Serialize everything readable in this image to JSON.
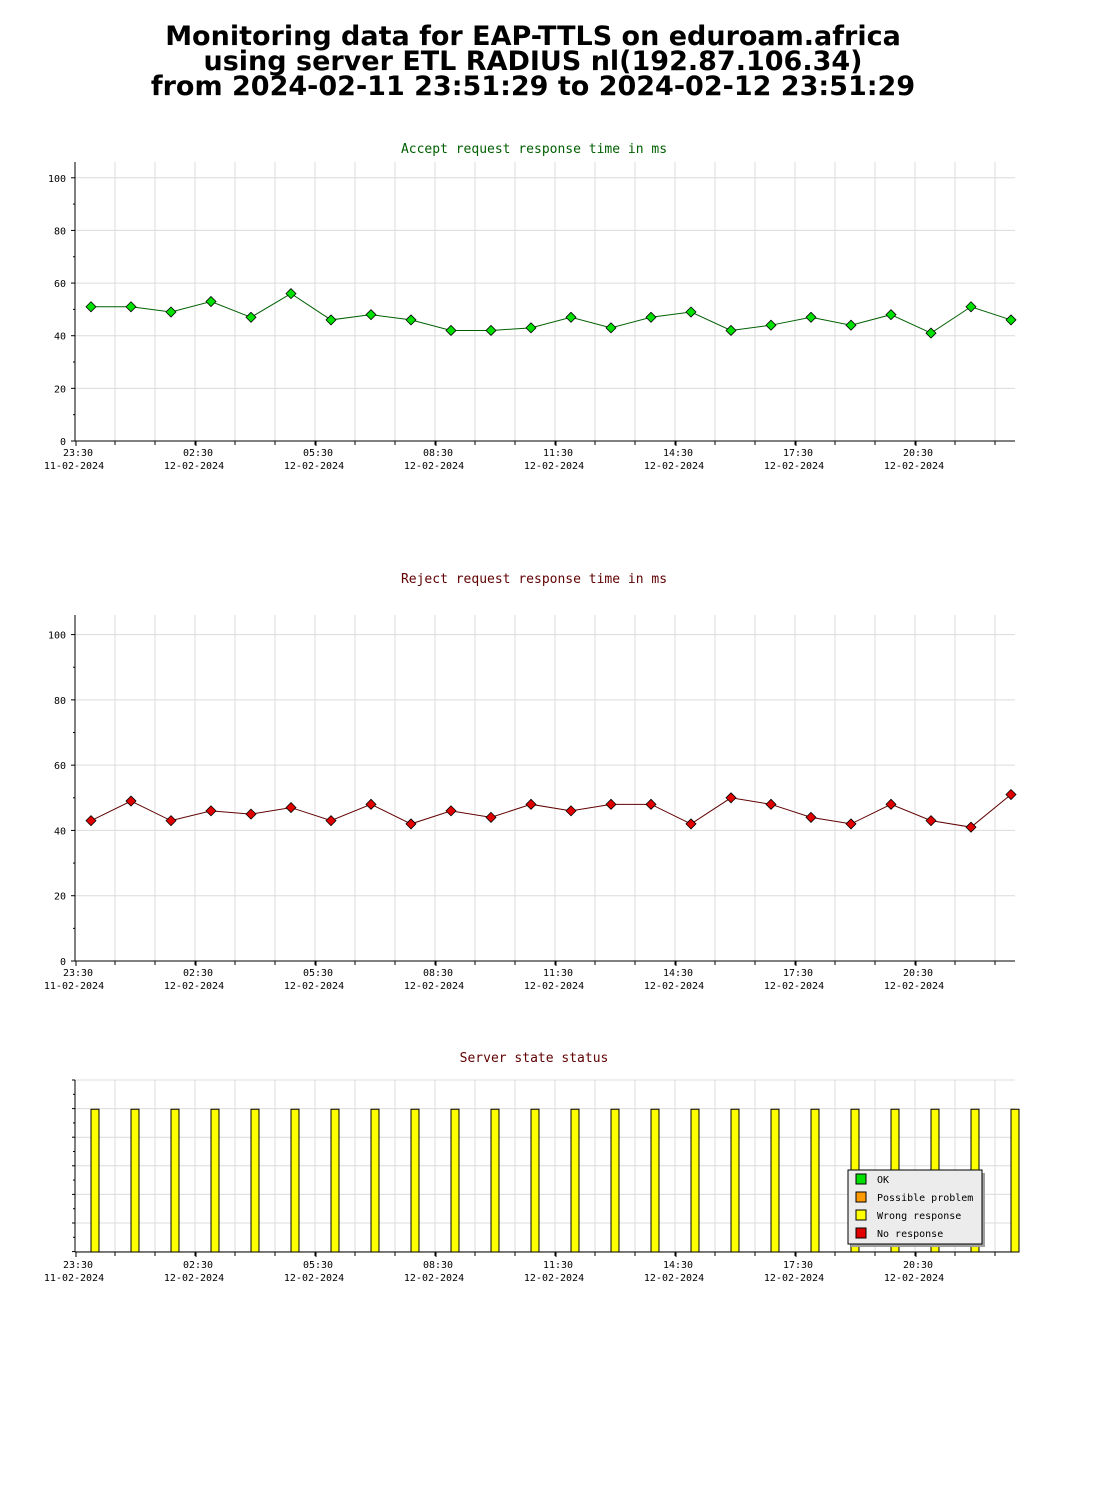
{
  "header": {
    "line1": "Monitoring data for EAP-TTLS on eduroam.africa",
    "line2": "using server ETL RADIUS nl(192.87.106.34)",
    "line3": "from 2024-02-11 23:51:29 to 2024-02-12 23:51:29"
  },
  "chart_data": [
    {
      "type": "line",
      "title": "Accept request response time in ms",
      "title_color": "#006000",
      "marker_color": "#00e000",
      "line_color": "#006000",
      "ylim": [
        0,
        106
      ],
      "yticks": [
        "0",
        "20",
        "40",
        "60",
        "80",
        "100"
      ],
      "xticks": [
        {
          "time": "23:30",
          "date": "11-02-2024"
        },
        {
          "time": "02:30",
          "date": "12-02-2024"
        },
        {
          "time": "05:30",
          "date": "12-02-2024"
        },
        {
          "time": "08:30",
          "date": "12-02-2024"
        },
        {
          "time": "11:30",
          "date": "12-02-2024"
        },
        {
          "time": "14:30",
          "date": "12-02-2024"
        },
        {
          "time": "17:30",
          "date": "12-02-2024"
        },
        {
          "time": "20:30",
          "date": "12-02-2024"
        }
      ],
      "grid": true,
      "values": [
        51,
        51,
        49,
        53,
        47,
        56,
        46,
        48,
        46,
        42,
        42,
        43,
        47,
        43,
        47,
        49,
        42,
        44,
        47,
        44,
        48,
        41,
        51,
        46
      ]
    },
    {
      "type": "line",
      "title": "Reject request response time in ms",
      "title_color": "#600000",
      "marker_color": "#e00000",
      "line_color": "#600000",
      "ylim": [
        0,
        106
      ],
      "yticks": [
        "0",
        "20",
        "40",
        "60",
        "80",
        "100"
      ],
      "xticks": [
        {
          "time": "23:30",
          "date": "11-02-2024"
        },
        {
          "time": "02:30",
          "date": "12-02-2024"
        },
        {
          "time": "05:30",
          "date": "12-02-2024"
        },
        {
          "time": "08:30",
          "date": "12-02-2024"
        },
        {
          "time": "11:30",
          "date": "12-02-2024"
        },
        {
          "time": "14:30",
          "date": "12-02-2024"
        },
        {
          "time": "17:30",
          "date": "12-02-2024"
        },
        {
          "time": "20:30",
          "date": "12-02-2024"
        }
      ],
      "grid": true,
      "values": [
        43,
        49,
        43,
        46,
        45,
        47,
        43,
        48,
        42,
        46,
        44,
        48,
        46,
        48,
        48,
        42,
        50,
        48,
        44,
        42,
        48,
        43,
        41,
        51
      ]
    },
    {
      "type": "bar",
      "title": "Server state status",
      "title_color": "#600000",
      "xticks": [
        {
          "time": "23:30",
          "date": "11-02-2024"
        },
        {
          "time": "02:30",
          "date": "12-02-2024"
        },
        {
          "time": "05:30",
          "date": "12-02-2024"
        },
        {
          "time": "08:30",
          "date": "12-02-2024"
        },
        {
          "time": "11:30",
          "date": "12-02-2024"
        },
        {
          "time": "14:30",
          "date": "12-02-2024"
        },
        {
          "time": "17:30",
          "date": "12-02-2024"
        },
        {
          "time": "20:30",
          "date": "12-02-2024"
        }
      ],
      "legend": [
        {
          "label": "OK",
          "color": "#00e000"
        },
        {
          "label": "Possible problem",
          "color": "#ff9900"
        },
        {
          "label": "Wrong response",
          "color": "#ffff00"
        },
        {
          "label": "No response",
          "color": "#e00000"
        }
      ],
      "legend_position": "bottom-right",
      "bar_status": "Wrong response",
      "bar_level": 0.83,
      "bar_count": 24
    }
  ]
}
